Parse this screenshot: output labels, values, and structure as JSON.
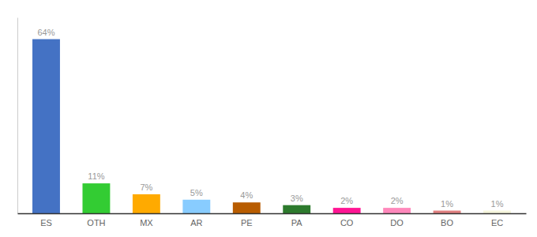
{
  "chart_data": {
    "type": "bar",
    "categories": [
      "ES",
      "OTH",
      "MX",
      "AR",
      "PE",
      "PA",
      "CO",
      "DO",
      "BO",
      "EC"
    ],
    "values": [
      64,
      11,
      7,
      5,
      4,
      3,
      2,
      2,
      1,
      1
    ],
    "value_labels": [
      "64%",
      "11%",
      "7%",
      "5%",
      "4%",
      "3%",
      "2%",
      "2%",
      "1%",
      "1%"
    ],
    "colors": [
      "#4472c4",
      "#33cc33",
      "#ffaa00",
      "#88ccff",
      "#b85c00",
      "#2d7a2d",
      "#ff1493",
      "#ff88bb",
      "#e08080",
      "#f5f5dc"
    ],
    "ylim": [
      0,
      72
    ],
    "grid": false,
    "data_labels": true,
    "tick_labels": "x"
  }
}
